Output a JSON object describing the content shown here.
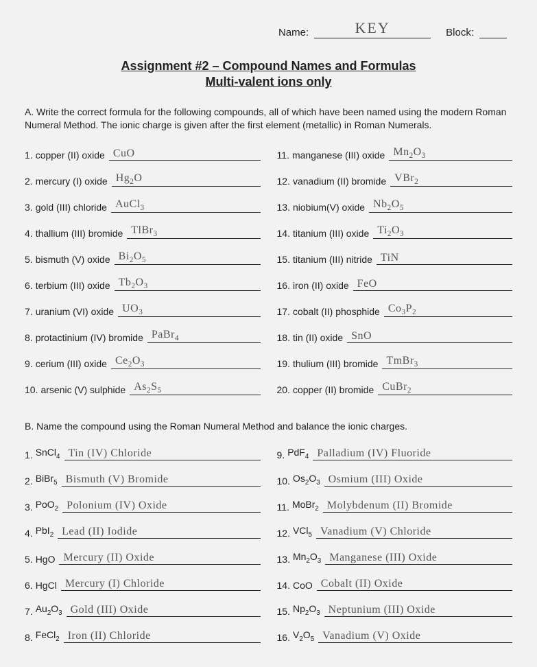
{
  "header": {
    "name_label": "Name:",
    "name_value": "KEY",
    "block_label": "Block:"
  },
  "title": "Assignment #2 – Compound Names and Formulas",
  "subtitle": "Multi-valent ions only",
  "sectionA": {
    "instructions": "A.  Write the correct formula for the following compounds, all of which have been named using the modern Roman Numeral Method.  The ionic charge is given after the first element (metallic) in Roman Numerals.",
    "left": [
      {
        "n": "1.",
        "p": "copper (II) oxide",
        "a": "CuO"
      },
      {
        "n": "2.",
        "p": "mercury (I) oxide",
        "a": "Hg₂O"
      },
      {
        "n": "3.",
        "p": "gold (III) chloride",
        "a": "AuCl₃"
      },
      {
        "n": "4.",
        "p": "thallium (III) bromide",
        "a": "TlBr₃"
      },
      {
        "n": "5.",
        "p": "bismuth (V) oxide",
        "a": "Bi₂O₅"
      },
      {
        "n": "6.",
        "p": "terbium (III) oxide",
        "a": "Tb₂O₃"
      },
      {
        "n": "7.",
        "p": "uranium (VI) oxide",
        "a": "UO₃"
      },
      {
        "n": "8.",
        "p": "protactinium (IV) bromide",
        "a": "PaBr₄"
      },
      {
        "n": "9.",
        "p": "cerium (III) oxide",
        "a": "Ce₂O₃"
      },
      {
        "n": "10.",
        "p": "arsenic (V) sulphide",
        "a": "As₂S₅"
      }
    ],
    "right": [
      {
        "n": "11.",
        "p": "manganese (III) oxide",
        "a": "Mn₂O₃"
      },
      {
        "n": "12.",
        "p": "vanadium (II) bromide",
        "a": "VBr₂"
      },
      {
        "n": "13.",
        "p": "niobium(V) oxide",
        "a": "Nb₂O₅"
      },
      {
        "n": "14.",
        "p": "titanium (III) oxide",
        "a": "Ti₂O₃"
      },
      {
        "n": "15.",
        "p": "titanium (III) nitride",
        "a": "TiN"
      },
      {
        "n": "16.",
        "p": "iron (II) oxide",
        "a": "FeO"
      },
      {
        "n": "17.",
        "p": "cobalt (II) phosphide",
        "a": "Co₃P₂"
      },
      {
        "n": "18.",
        "p": "tin (II) oxide",
        "a": "SnO"
      },
      {
        "n": "19.",
        "p": "thulium (III) bromide",
        "a": "TmBr₃"
      },
      {
        "n": "20.",
        "p": "copper (II) bromide",
        "a": "CuBr₂"
      }
    ]
  },
  "sectionB": {
    "instructions": "B.  Name the compound using the Roman Numeral Method and balance the ionic charges.",
    "left": [
      {
        "n": "1.",
        "p": "SnCl₄",
        "a": "Tin (IV) Chloride"
      },
      {
        "n": "2.",
        "p": "BiBr₅",
        "a": "Bismuth (V) Bromide"
      },
      {
        "n": "3.",
        "p": "PoO₂",
        "a": "Polonium (IV) Oxide"
      },
      {
        "n": "4.",
        "p": "PbI₂",
        "a": "Lead (II) Iodide"
      },
      {
        "n": "5.",
        "p": "HgO",
        "a": "Mercury (II) Oxide"
      },
      {
        "n": "6.",
        "p": "HgCl",
        "a": "Mercury (I) Chloride"
      },
      {
        "n": "7.",
        "p": "Au₂O₃",
        "a": "Gold (III) Oxide"
      },
      {
        "n": "8.",
        "p": "FeCl₂",
        "a": "Iron (II) Chloride"
      }
    ],
    "right": [
      {
        "n": "9.",
        "p": "PdF₄",
        "a": "Palladium (IV) Fluoride"
      },
      {
        "n": "10.",
        "p": "Os₂O₃",
        "a": "Osmium (III) Oxide"
      },
      {
        "n": "11.",
        "p": "MoBr₂",
        "a": "Molybdenum (II) Bromide"
      },
      {
        "n": "12.",
        "p": "VCl₅",
        "a": "Vanadium (V) Chloride"
      },
      {
        "n": "13.",
        "p": "Mn₂O₃",
        "a": "Manganese (III) Oxide"
      },
      {
        "n": "14.",
        "p": "CoO",
        "a": "Cobalt (II) Oxide"
      },
      {
        "n": "15.",
        "p": "Np₂O₃",
        "a": "Neptunium (III) Oxide"
      },
      {
        "n": "16.",
        "p": "V₂O₅",
        "a": "Vanadium (V) Oxide"
      }
    ]
  }
}
